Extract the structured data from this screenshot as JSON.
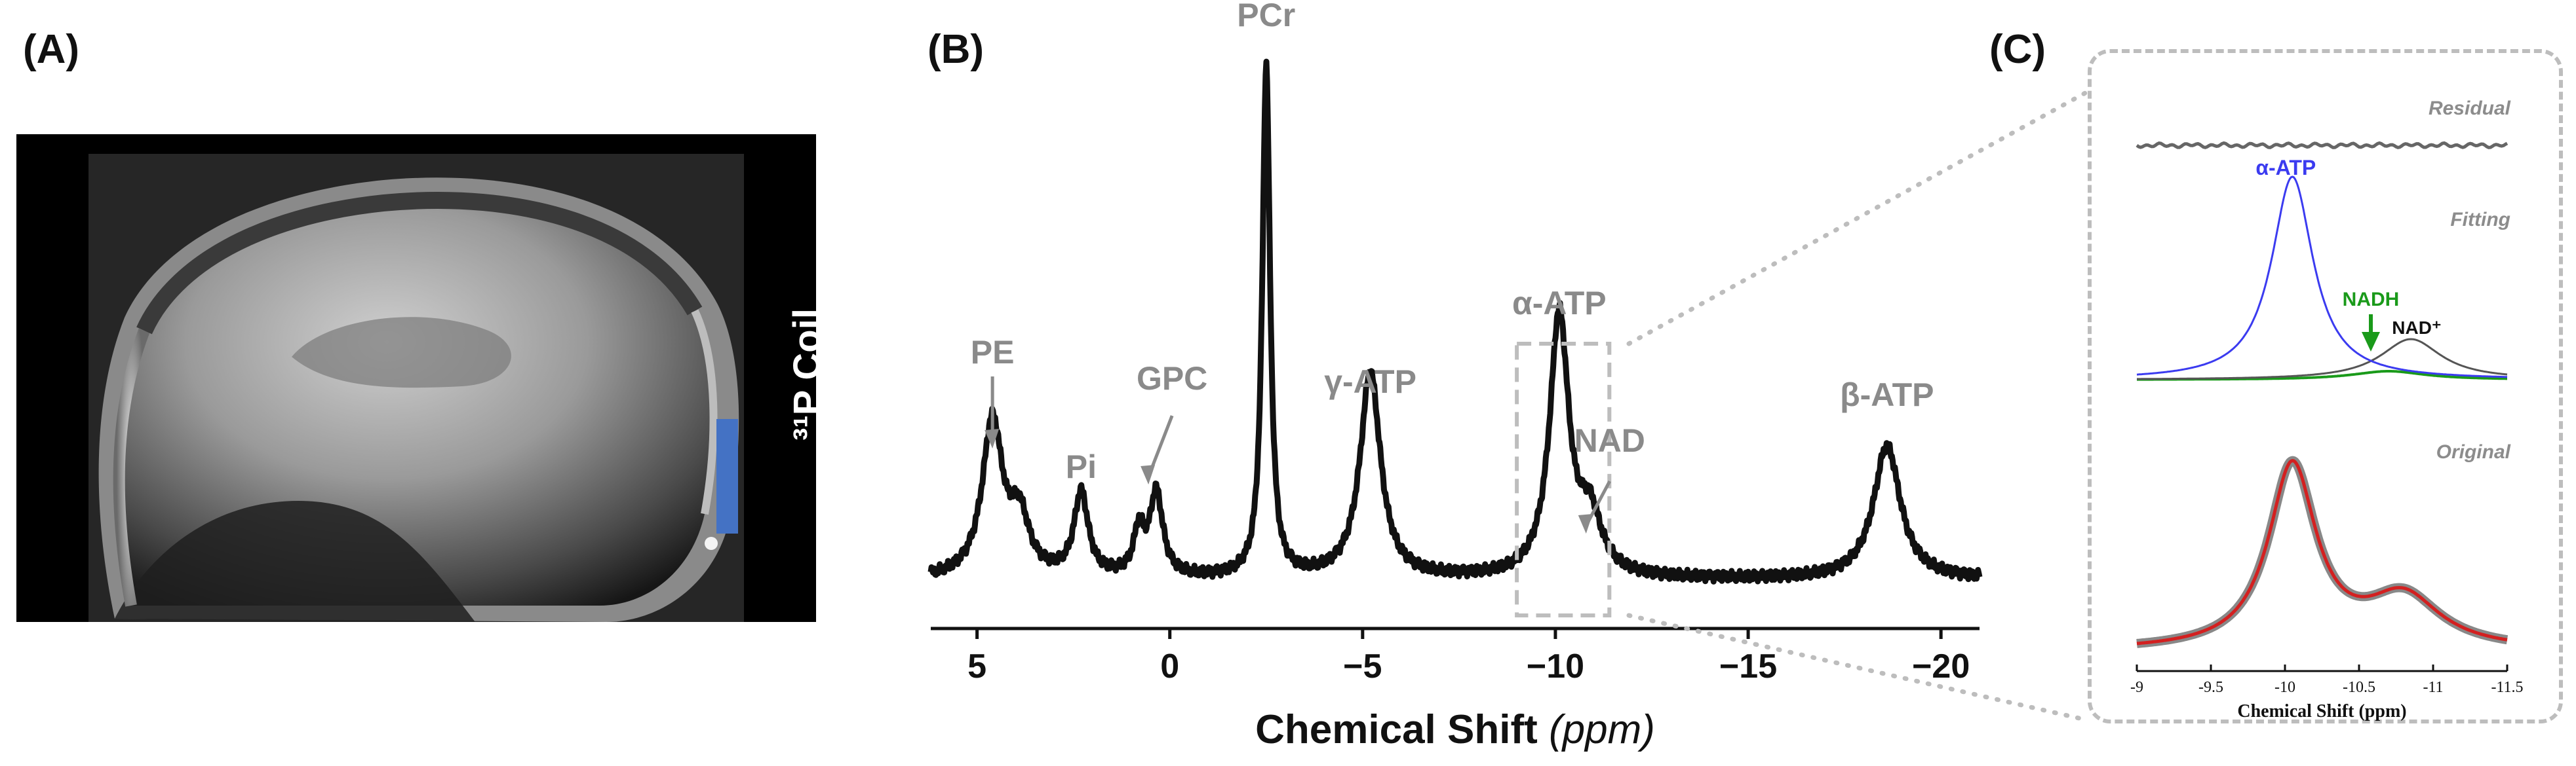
{
  "panels": {
    "a_label": "(A)",
    "b_label": "(B)",
    "c_label": "(C)"
  },
  "mri": {
    "coil_label": "³¹P Coil",
    "coil_color": "#4472c4"
  },
  "chart_data": [
    {
      "type": "line",
      "title": "",
      "xlabel": "Chemical Shift",
      "xlabel_unit": "(ppm)",
      "ylabel": "",
      "xlim": [
        6.2,
        -21
      ],
      "x_reversed": true,
      "xticks": [
        5,
        0,
        -5,
        -10,
        -15,
        -20
      ],
      "xtick_labels": [
        "5",
        "0",
        "−5",
        "−10",
        "−15",
        "−20"
      ],
      "grid": false,
      "color": "#111111",
      "baseline": 0.07,
      "peaks": [
        {
          "ppm": 4.6,
          "height": 0.28,
          "width": 0.32
        },
        {
          "ppm": 3.9,
          "height": 0.1,
          "width": 0.3
        },
        {
          "ppm": 2.3,
          "height": 0.15,
          "width": 0.22
        },
        {
          "ppm": 0.8,
          "height": 0.08,
          "width": 0.16
        },
        {
          "ppm": 0.35,
          "height": 0.15,
          "width": 0.2
        },
        {
          "ppm": -2.5,
          "height": 0.92,
          "width": 0.12
        },
        {
          "ppm": -5.2,
          "height": 0.37,
          "width": 0.32
        },
        {
          "ppm": -10.1,
          "height": 0.47,
          "width": 0.3
        },
        {
          "ppm": -10.9,
          "height": 0.1,
          "width": 0.35
        },
        {
          "ppm": -18.6,
          "height": 0.24,
          "width": 0.42
        }
      ],
      "annotations": [
        {
          "text": "PE",
          "ppm": 4.6,
          "arrow": true
        },
        {
          "text": "Pi",
          "ppm": 2.3,
          "arrow": false
        },
        {
          "text": "GPC",
          "ppm": 0.35,
          "arrow": true
        },
        {
          "text": "PCr",
          "ppm": -2.5,
          "arrow": false
        },
        {
          "text": "γ-ATP",
          "ppm": -5.2,
          "arrow": false
        },
        {
          "text": "α-ATP",
          "ppm": -10.1,
          "arrow": false
        },
        {
          "text": "NAD",
          "ppm": -11.0,
          "arrow": true
        },
        {
          "text": "β-ATP",
          "ppm": -18.6,
          "arrow": false
        }
      ],
      "zoom_box_ppm": [
        -9.0,
        -11.4
      ]
    },
    {
      "type": "line",
      "xlabel": "Chemical Shift (ppm)",
      "xlim": [
        -9,
        -11.5
      ],
      "xticks": [
        -9,
        -9.5,
        -10,
        -10.5,
        -11,
        -11.5
      ],
      "xtick_labels": [
        "-9",
        "-9.5",
        "-10",
        "-10.5",
        "-11",
        "-11.5"
      ],
      "section_labels": [
        "Residual",
        "Fitting",
        "Original"
      ],
      "series": [
        {
          "name": "Residual",
          "color": "#666666"
        },
        {
          "name": "α-ATP",
          "color": "#3b3bf0",
          "center": -10.05,
          "height": 1.0,
          "width": 0.17
        },
        {
          "name": "NAD⁺",
          "color": "#555555",
          "center": -10.85,
          "height": 0.2,
          "width": 0.25
        },
        {
          "name": "NADH",
          "color": "#1a9a1a",
          "center": -10.7,
          "height": 0.07,
          "width": 0.3
        },
        {
          "name": "Original",
          "color": "#d32020",
          "halo": "#888888"
        }
      ],
      "labels": {
        "alpha_atp": "α-ATP",
        "nadh": "NADH",
        "nad_plus": "NAD⁺"
      }
    }
  ]
}
